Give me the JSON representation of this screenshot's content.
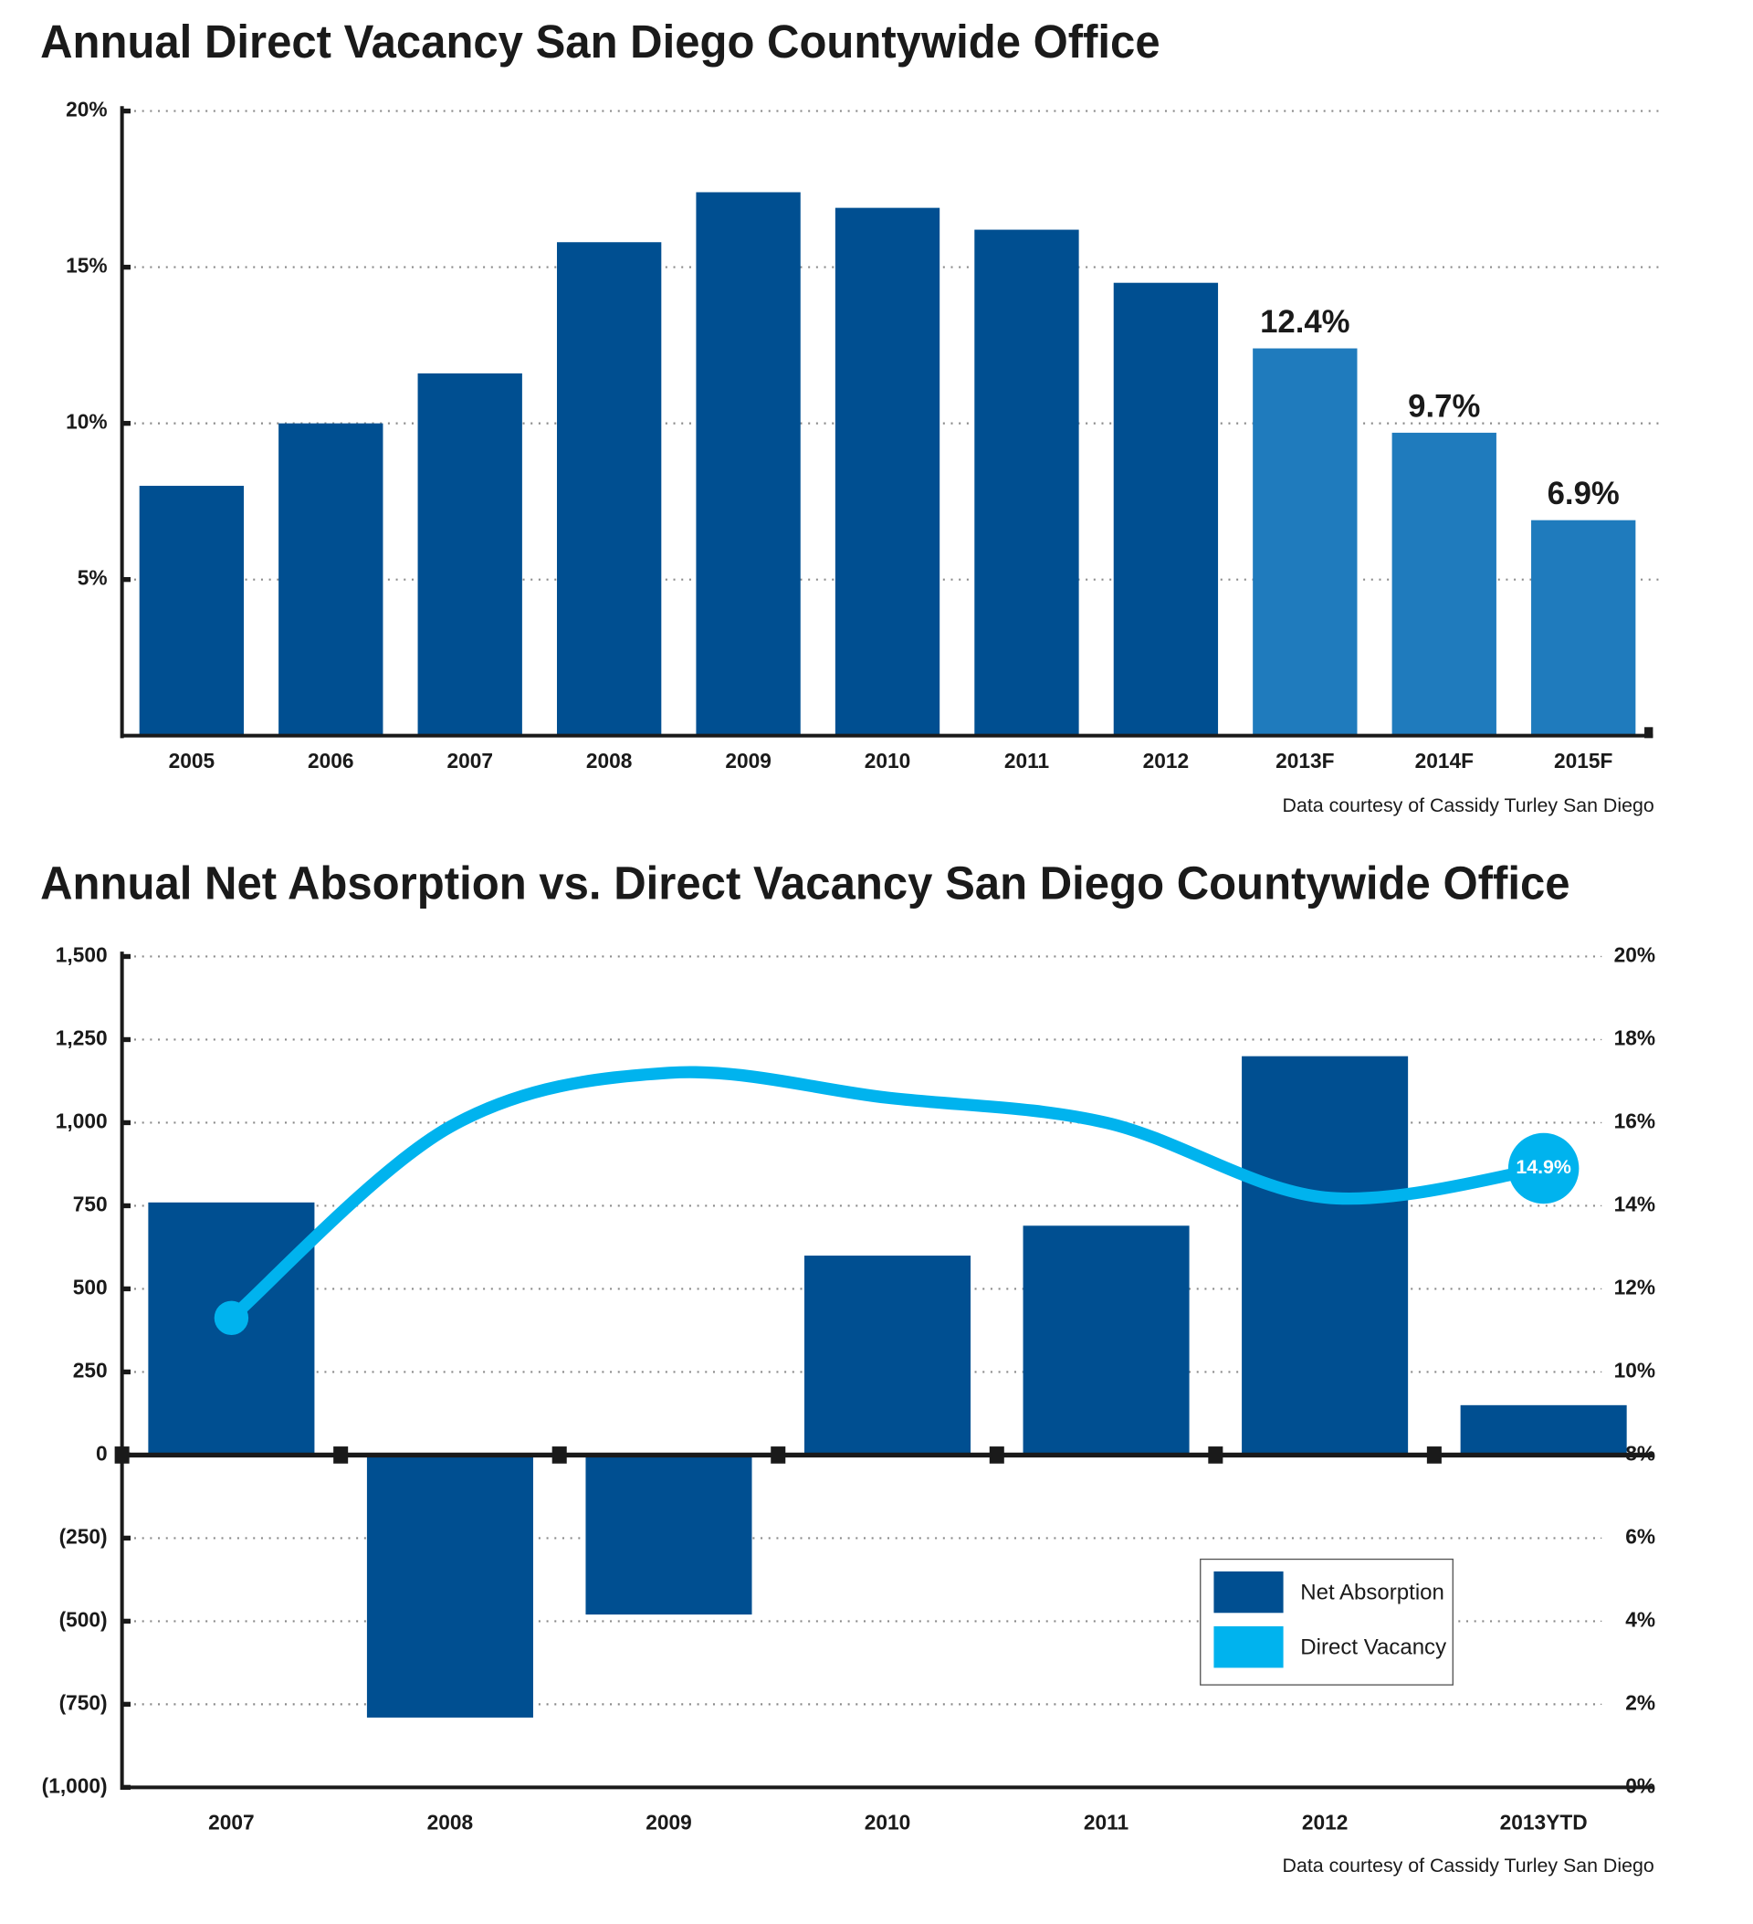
{
  "chart_data": [
    {
      "type": "bar",
      "title": "Annual Direct Vacancy San Diego Countywide Office",
      "categories": [
        "2005",
        "2006",
        "2007",
        "2008",
        "2009",
        "2010",
        "2011",
        "2012",
        "2013F",
        "2014F",
        "2015F"
      ],
      "values": [
        8.0,
        10.0,
        11.6,
        15.8,
        17.4,
        16.9,
        16.2,
        14.5,
        12.4,
        9.7,
        6.9
      ],
      "value_labels": [
        null,
        null,
        null,
        null,
        null,
        null,
        null,
        null,
        "12.4%",
        "9.7%",
        "6.9%"
      ],
      "colors": [
        "#004f91",
        "#004f91",
        "#004f91",
        "#004f91",
        "#004f91",
        "#004f91",
        "#004f91",
        "#004f91",
        "#1f7bbd",
        "#1f7bbd",
        "#1f7bbd"
      ],
      "ylim": [
        0,
        20
      ],
      "yticks": [
        {
          "value": 5,
          "label": "5%"
        },
        {
          "value": 10,
          "label": "10%"
        },
        {
          "value": 15,
          "label": "15%"
        },
        {
          "value": 20,
          "label": "20%"
        }
      ],
      "grid": true,
      "source": "Data courtesy of Cassidy Turley San Diego"
    },
    {
      "type": "combo",
      "title": "Annual Net Absorption vs. Direct Vacancy San Diego Countywide Office",
      "categories": [
        "2007",
        "2008",
        "2009",
        "2010",
        "2011",
        "2012",
        "2013YTD"
      ],
      "series": [
        {
          "name": "Net Absorption",
          "type": "bar",
          "color": "#004f91",
          "values": [
            760,
            -790,
            -480,
            600,
            690,
            1200,
            150
          ]
        },
        {
          "name": "Direct Vacancy",
          "type": "line",
          "axis": "y2",
          "color": "#00b3ee",
          "values": [
            11.3,
            15.9,
            17.2,
            16.6,
            16.0,
            14.2,
            14.9
          ],
          "value_labels": [
            null,
            null,
            null,
            null,
            null,
            null,
            "14.9%"
          ]
        }
      ],
      "ylim": [
        -1000,
        1500
      ],
      "yticks": [
        {
          "value": -1000,
          "label": "(1,000)"
        },
        {
          "value": -750,
          "label": "(750)"
        },
        {
          "value": -500,
          "label": "(500)"
        },
        {
          "value": -250,
          "label": "(250)"
        },
        0,
        250,
        500,
        750,
        {
          "value": 1000,
          "label": "1,000"
        },
        {
          "value": 1250,
          "label": "1,250"
        },
        {
          "value": 1500,
          "label": "1,500"
        }
      ],
      "y2lim": [
        0,
        20
      ],
      "y2ticks": [
        {
          "value": 0,
          "label": "0%"
        },
        {
          "value": 2,
          "label": "2%"
        },
        {
          "value": 4,
          "label": "4%"
        },
        {
          "value": 6,
          "label": "6%"
        },
        {
          "value": 8,
          "label": "8%"
        },
        {
          "value": 10,
          "label": "10%"
        },
        {
          "value": 12,
          "label": "12%"
        },
        {
          "value": 14,
          "label": "14%"
        },
        {
          "value": 16,
          "label": "16%"
        },
        {
          "value": 18,
          "label": "18%"
        },
        {
          "value": 20,
          "label": "20%"
        }
      ],
      "grid": true,
      "legend": "lower right",
      "source": "Data courtesy of Cassidy Turley San Diego"
    }
  ]
}
